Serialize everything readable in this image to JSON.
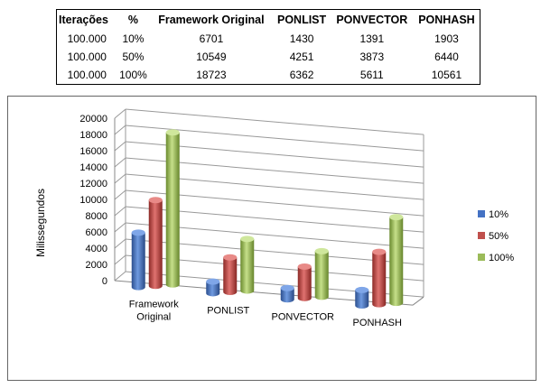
{
  "table": {
    "headers": [
      "Iterações",
      "%",
      "Framework Original",
      "PONLIST",
      "PONVECTOR",
      "PONHASH"
    ],
    "rows": [
      [
        "100.000",
        "10%",
        "6701",
        "1430",
        "1391",
        "1903"
      ],
      [
        "100.000",
        "50%",
        "10549",
        "4251",
        "3873",
        "6440"
      ],
      [
        "100.000",
        "100%",
        "18723",
        "6362",
        "5611",
        "10561"
      ]
    ]
  },
  "chart_data": {
    "type": "bar",
    "style": "3d-clustered-column",
    "categories": [
      "Framework Original",
      "PONLIST",
      "PONVECTOR",
      "PONHASH"
    ],
    "series": [
      {
        "name": "10%",
        "values": [
          6701,
          1430,
          1391,
          1903
        ]
      },
      {
        "name": "50%",
        "values": [
          10549,
          4251,
          3873,
          6440
        ]
      },
      {
        "name": "100%",
        "values": [
          18723,
          6362,
          5611,
          10561
        ]
      }
    ],
    "ylabel": "Milissegundos",
    "ylim": [
      0,
      20000
    ],
    "yticks": [
      0,
      2000,
      4000,
      6000,
      8000,
      10000,
      12000,
      14000,
      16000,
      18000,
      20000
    ],
    "grid": true,
    "legend": "right",
    "colors": [
      "#4472C4",
      "#C0504D",
      "#9BBB59"
    ]
  }
}
